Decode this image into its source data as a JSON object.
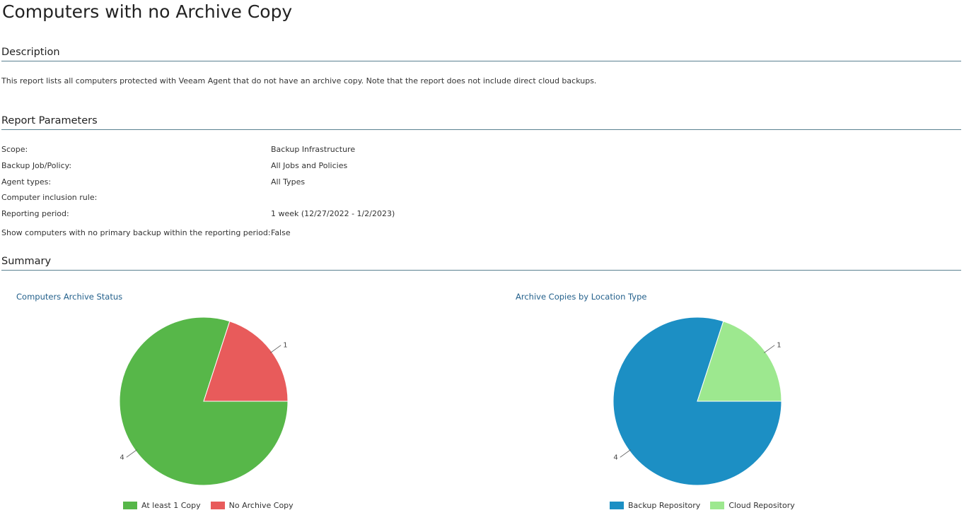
{
  "page": {
    "title": "Computers with no Archive Copy"
  },
  "description": {
    "heading": "Description",
    "text": "This report lists all computers protected with Veeam Agent that do not have an archive copy. Note that the report does not include direct cloud backups."
  },
  "parameters": {
    "heading": "Report Parameters",
    "rows": [
      {
        "label": "Scope:",
        "value": "Backup Infrastructure"
      },
      {
        "label": "Backup Job/Policy:",
        "value": "All Jobs and Policies"
      },
      {
        "label": "Agent types:",
        "value": "All Types"
      },
      {
        "label": "Computer inclusion rule:",
        "value": ""
      },
      {
        "label": "Reporting period:",
        "value": "1 week (12/27/2022 - 1/2/2023)"
      },
      {
        "label": "Show computers with no primary backup within the reporting period:",
        "value": "False"
      }
    ]
  },
  "summary": {
    "heading": "Summary"
  },
  "chart_data": [
    {
      "type": "pie",
      "title": "Computers Archive Status",
      "categories": [
        "At least 1 Copy",
        "No Archive Copy"
      ],
      "values": [
        4,
        1
      ],
      "data_labels": [
        "4",
        "1"
      ],
      "colors": [
        "#57b749",
        "#e85b5b"
      ],
      "legend": "bottom"
    },
    {
      "type": "pie",
      "title": "Archive Copies by Location Type",
      "categories": [
        "Backup Repository",
        "Cloud Repository"
      ],
      "values": [
        4,
        1
      ],
      "data_labels": [
        "4",
        "1"
      ],
      "colors": [
        "#1c8fc4",
        "#9de88f"
      ],
      "legend": "bottom"
    }
  ]
}
